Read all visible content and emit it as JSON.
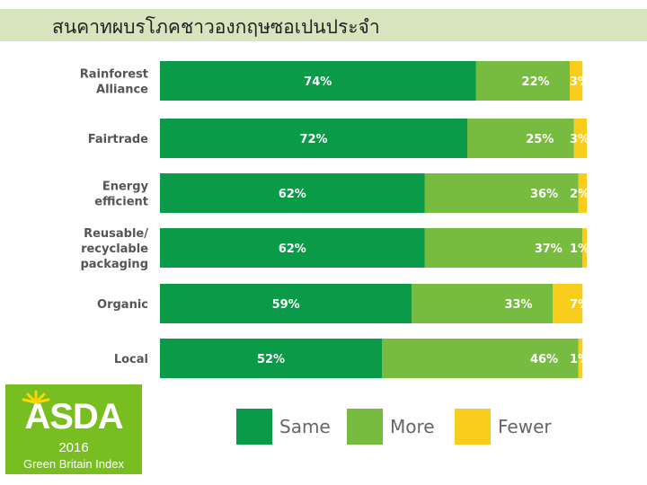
{
  "header": {
    "title": "สนคาทผบรโภคชาวองกฤษซอเปนประจำ"
  },
  "logo": {
    "name": "ASDA",
    "year": "2016",
    "subtitle": "Green Britain Index",
    "icon": "sunburst-icon"
  },
  "colors": {
    "same": "#0a9a48",
    "more": "#77bb41",
    "fewer": "#f9cd1b"
  },
  "chart_data": {
    "type": "bar",
    "orientation": "horizontal",
    "stacked": true,
    "categories": [
      [
        "Rainforest",
        "Alliance"
      ],
      [
        "Fairtrade"
      ],
      [
        "Energy",
        "efficient"
      ],
      [
        "Reusable/",
        "recyclable",
        "packaging"
      ],
      [
        "Organic"
      ],
      [
        "Local"
      ]
    ],
    "series": [
      {
        "name": "Same",
        "values": [
          74,
          72,
          62,
          62,
          59,
          52
        ],
        "labels": [
          "74%",
          "72%",
          "62%",
          "62%",
          "59%",
          "52%"
        ]
      },
      {
        "name": "More",
        "values": [
          22,
          25,
          36,
          37,
          33,
          46
        ],
        "labels": [
          "22%",
          "25%",
          "36%",
          "37%",
          "33%",
          "46%"
        ]
      },
      {
        "name": "Fewer",
        "values": [
          3,
          3,
          2,
          1,
          7,
          1
        ],
        "labels": [
          "3%",
          "3%",
          "2%",
          "1%",
          "7%",
          "1%"
        ]
      }
    ],
    "xlim": [
      0,
      100
    ],
    "grid": false,
    "legend": "bottom"
  }
}
